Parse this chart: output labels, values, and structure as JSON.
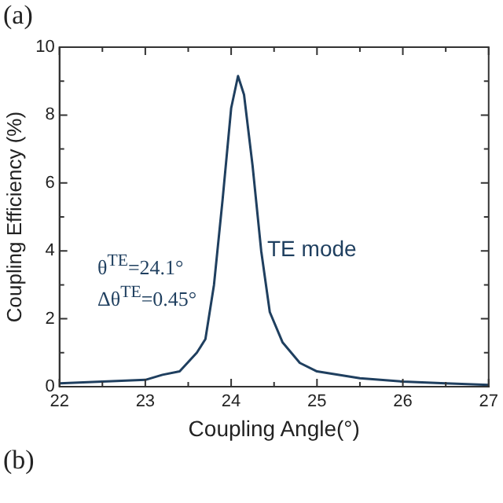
{
  "chart_data": {
    "type": "line",
    "x": [
      22,
      22.5,
      23,
      23.2,
      23.4,
      23.6,
      23.7,
      23.8,
      23.9,
      24.0,
      24.08,
      24.15,
      24.25,
      24.35,
      24.45,
      24.6,
      24.8,
      25,
      25.5,
      26,
      26.5,
      27
    ],
    "series": [
      {
        "color": "#1f3f5f",
        "values": [
          0.1,
          0.15,
          0.2,
          0.35,
          0.45,
          1.0,
          1.4,
          3.0,
          5.5,
          8.2,
          9.15,
          8.6,
          6.5,
          4.0,
          2.2,
          1.3,
          0.7,
          0.45,
          0.25,
          0.15,
          0.1,
          0.05
        ]
      }
    ],
    "xlabel": "Coupling Angle(°)",
    "ylabel": "Coupling Efficiency (%)",
    "xlim": [
      22,
      27
    ],
    "xticks": [
      22,
      23,
      24,
      25,
      26,
      27
    ],
    "ylim": [
      0,
      10
    ],
    "yticks": [
      0,
      2,
      4,
      6,
      8,
      10
    ],
    "annotations": [
      "(a)",
      "θ$^{TE}$=24.1°",
      "Δθ$^{TE}$=0.45°",
      "TE mode",
      "(b)"
    ],
    "grid": false,
    "legend": false,
    "marker": "none",
    "line_style": "solid"
  }
}
